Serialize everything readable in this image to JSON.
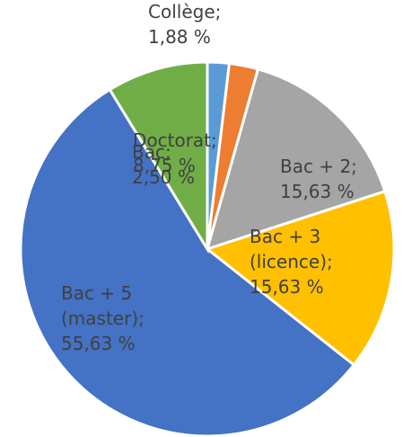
{
  "chart_data": {
    "type": "pie",
    "categories": [
      "Collège",
      "Bac",
      "Bac + 2",
      "Bac + 3 (licence)",
      "Bac + 5 (master)",
      "Doctorat"
    ],
    "values": [
      1.88,
      2.5,
      15.63,
      15.63,
      55.63,
      8.75
    ],
    "value_labels": [
      "1,88 %",
      "2,50 %",
      "15,63 %",
      "15,63 %",
      "55,63 %",
      "8,75 %"
    ],
    "label_separator": "; ",
    "colors": [
      "#5b9bd5",
      "#ed7d31",
      "#a5a5a5",
      "#ffc000",
      "#4472c4",
      "#70ad47"
    ]
  }
}
